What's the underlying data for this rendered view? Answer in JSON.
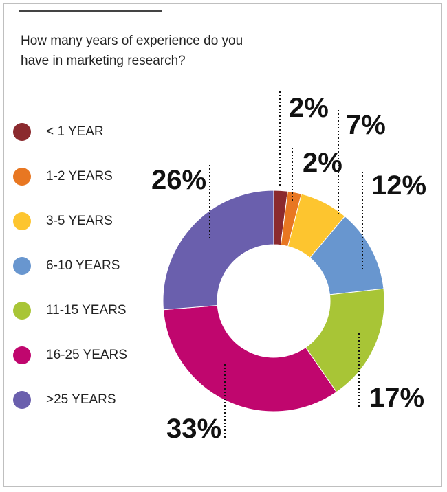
{
  "chart_data": {
    "type": "pie",
    "title": "How many years of experience do you have in marketing research?",
    "categories": [
      "< 1 YEAR",
      "1-2 YEARS",
      "3-5 YEARS",
      "6-10 YEARS",
      "11-15 YEARS",
      "16-25 YEARS",
      ">25 YEARS"
    ],
    "values": [
      2,
      2,
      7,
      12,
      17,
      33,
      26
    ],
    "value_labels": [
      "2%",
      "2%",
      "7%",
      "12%",
      "17%",
      "33%",
      "26%"
    ],
    "colors": [
      "#8b2a2e",
      "#e87722",
      "#fdc52f",
      "#6896cf",
      "#a8c536",
      "#c0066e",
      "#6a5fad"
    ]
  }
}
